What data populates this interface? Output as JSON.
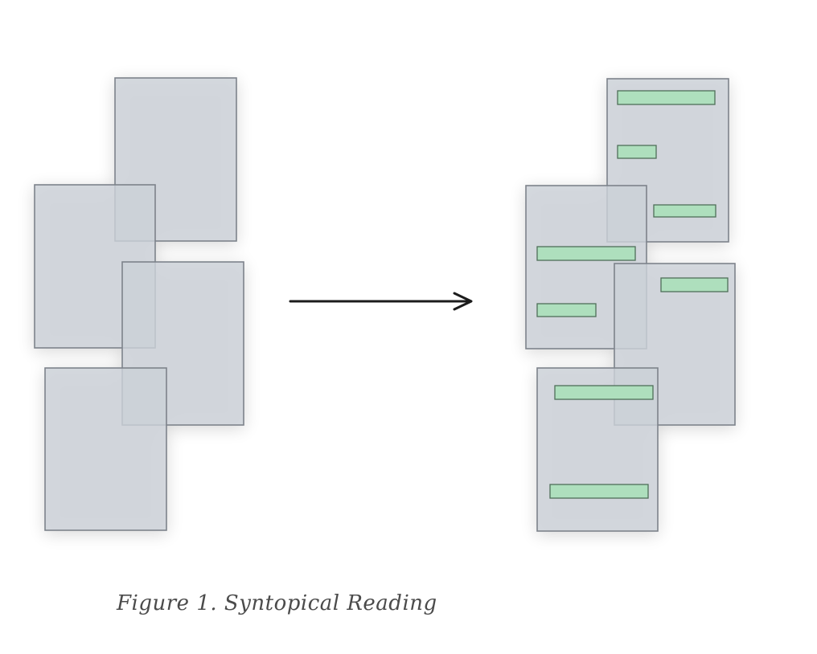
{
  "figure": {
    "caption": "Figure 1. Syntopical Reading",
    "colors": {
      "page_fill": "#ccd1d8",
      "page_stroke": "#7d838b",
      "highlight_fill": "#aedfbd",
      "highlight_stroke": "#4f6f59",
      "arrow": "#1c1c1c"
    },
    "left_stack": {
      "page_count": 4,
      "highlighted": false
    },
    "right_stack": {
      "page_count": 4,
      "highlighted": true,
      "highlights_per_page": [
        3,
        2,
        1,
        2
      ]
    },
    "arrow_icon": "right-arrow-icon"
  }
}
